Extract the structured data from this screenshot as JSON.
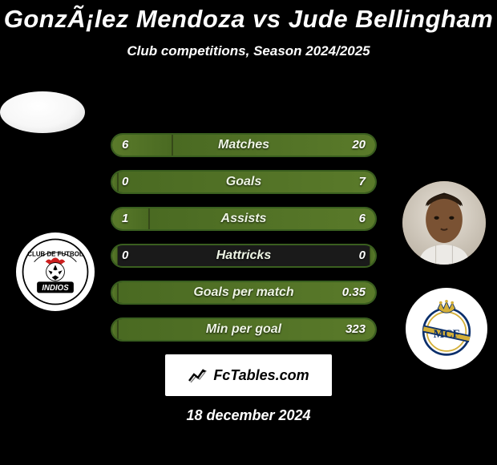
{
  "title": "GonzÃ¡lez Mendoza vs Jude Bellingham",
  "subtitle": "Club competitions, Season 2024/2025",
  "date": "18 december 2024",
  "footer_brand": "FcTables.com",
  "colors": {
    "background": "#000000",
    "bar_border": "#3a5f1f",
    "bar_fill": "#5a7a2a",
    "text": "#ffffff"
  },
  "player1": {
    "name": "GonzÃ¡lez Mendoza",
    "avatar": "blank-silhouette",
    "club_badge": "indios"
  },
  "player2": {
    "name": "Jude Bellingham",
    "avatar": "bellingham-photo",
    "club_badge": "real-madrid"
  },
  "stats": [
    {
      "label": "Matches",
      "p1": "6",
      "p2": "20",
      "p1_pct": 23,
      "p2_pct": 77
    },
    {
      "label": "Goals",
      "p1": "0",
      "p2": "7",
      "p1_pct": 2,
      "p2_pct": 98
    },
    {
      "label": "Assists",
      "p1": "1",
      "p2": "6",
      "p1_pct": 14,
      "p2_pct": 86
    },
    {
      "label": "Hattricks",
      "p1": "0",
      "p2": "0",
      "p1_pct": 2,
      "p2_pct": 2
    },
    {
      "label": "Goals per match",
      "p1": "",
      "p2": "0.35",
      "p1_pct": 2,
      "p2_pct": 98
    },
    {
      "label": "Min per goal",
      "p1": "",
      "p2": "323",
      "p1_pct": 2,
      "p2_pct": 98
    }
  ]
}
